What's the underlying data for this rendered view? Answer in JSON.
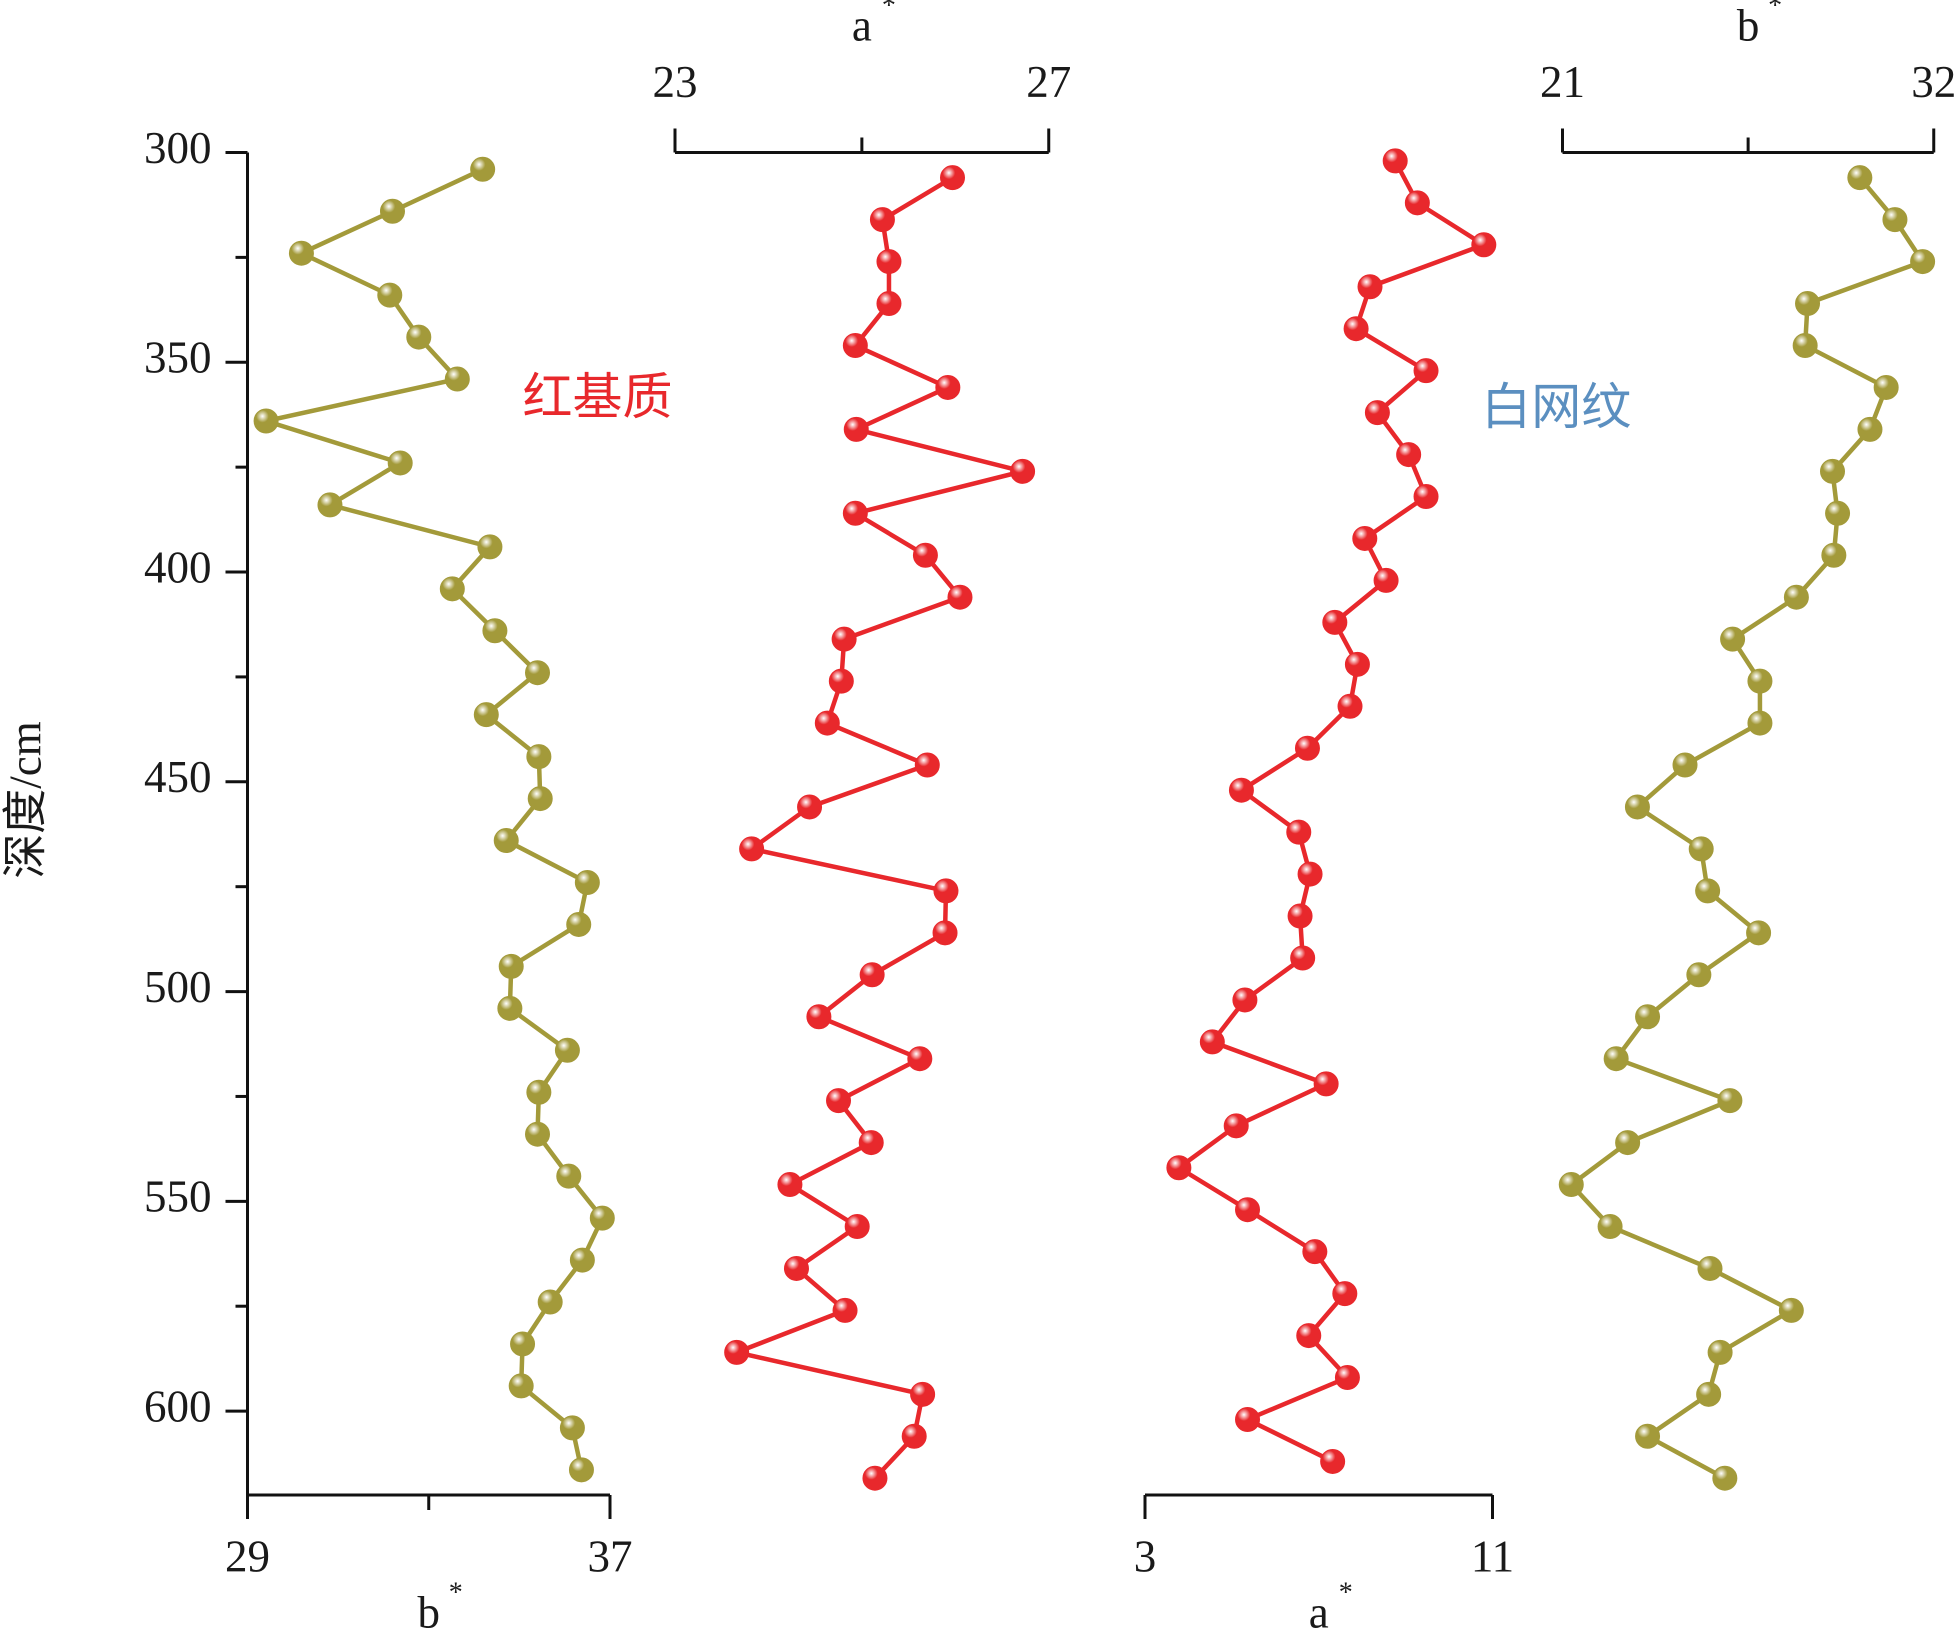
{
  "chart_data": [
    {
      "type": "line",
      "color": "#a39a3a",
      "xlabel": "b",
      "xlabel_sup": "*",
      "xaxis": "bottom",
      "ylabel": "深度/cm",
      "ylim": [
        300,
        620
      ],
      "yticks": [
        300,
        350,
        400,
        450,
        500,
        550,
        600
      ],
      "yminorticks": [
        325,
        375,
        425,
        475,
        525,
        575
      ],
      "xlim": [
        29,
        37
      ],
      "xticks": [
        29,
        37
      ],
      "xminorticks": [
        33
      ],
      "x": [
        34.19,
        32.2,
        30.19,
        32.14,
        32.78,
        33.63,
        29.41,
        32.37,
        30.82,
        34.35,
        33.52,
        34.46,
        35.4,
        34.27,
        35.43,
        35.46,
        34.71,
        36.5,
        36.31,
        34.82,
        34.79,
        36.06,
        35.43,
        35.4,
        36.09,
        36.83,
        36.39,
        35.68,
        35.07,
        35.04,
        36.17,
        36.37
      ],
      "y": [
        304,
        314,
        324,
        334,
        344,
        354,
        364,
        374,
        384,
        394,
        404,
        414,
        424,
        434,
        444,
        454,
        464,
        474,
        484,
        494,
        504,
        514,
        524,
        534,
        544,
        554,
        564,
        574,
        584,
        594,
        604,
        614
      ]
    },
    {
      "type": "line",
      "color": "#e8282c",
      "xlabel": "a",
      "xlabel_sup": "*",
      "xaxis": "top",
      "ylim": [
        300,
        620
      ],
      "xlim": [
        23,
        27
      ],
      "xticks": [
        23,
        27
      ],
      "xminorticks": [
        25
      ],
      "annotation": "红基质",
      "annotation_color": "#e8282c",
      "x": [
        25.97,
        25.22,
        25.29,
        25.29,
        24.93,
        25.92,
        24.94,
        26.72,
        24.93,
        25.68,
        26.05,
        24.81,
        24.78,
        24.63,
        25.7,
        24.44,
        23.82,
        25.9,
        25.89,
        25.11,
        24.54,
        25.62,
        24.75,
        25.1,
        24.23,
        24.95,
        24.3,
        24.82,
        23.66,
        25.65,
        25.56,
        25.14
      ],
      "y": [
        306,
        316,
        326,
        336,
        346,
        356,
        366,
        376,
        386,
        396,
        406,
        416,
        426,
        436,
        446,
        456,
        466,
        476,
        486,
        496,
        506,
        516,
        526,
        536,
        546,
        556,
        566,
        576,
        586,
        596,
        606,
        616
      ]
    },
    {
      "type": "line",
      "color": "#e8282c",
      "xlabel": "a",
      "xlabel_sup": "*",
      "xaxis": "bottom",
      "ylim": [
        300,
        620
      ],
      "xlim": [
        3,
        11
      ],
      "xticks": [
        3,
        11
      ],
      "annotation": "白网纹",
      "annotation_color": "#5b8fc0",
      "x": [
        8.76,
        9.27,
        10.8,
        8.18,
        7.86,
        9.47,
        8.35,
        9.07,
        9.47,
        8.06,
        8.55,
        7.37,
        7.89,
        7.72,
        6.74,
        5.22,
        6.54,
        6.8,
        6.57,
        6.63,
        5.3,
        4.55,
        7.17,
        5.1,
        3.78,
        5.36,
        6.91,
        7.6,
        6.77,
        7.66,
        5.36,
        7.32
      ],
      "y": [
        302,
        312,
        322,
        332,
        342,
        352,
        362,
        372,
        382,
        392,
        402,
        412,
        422,
        432,
        442,
        452,
        462,
        472,
        482,
        492,
        502,
        512,
        522,
        532,
        542,
        552,
        562,
        572,
        582,
        592,
        602,
        612
      ]
    },
    {
      "type": "line",
      "color": "#a39a3a",
      "xlabel": "b",
      "xlabel_sup": "*",
      "xaxis": "top",
      "ylim": [
        300,
        620
      ],
      "xlim": [
        21,
        32
      ],
      "xticks": [
        21,
        32
      ],
      "xminorticks": [
        26.5
      ],
      "x": [
        29.81,
        30.85,
        31.67,
        28.26,
        28.19,
        30.59,
        30.11,
        29.0,
        29.15,
        29.04,
        27.93,
        26.04,
        26.85,
        26.85,
        24.63,
        23.22,
        25.11,
        25.3,
        26.81,
        25.04,
        23.52,
        22.59,
        25.96,
        22.93,
        21.26,
        22.41,
        25.37,
        27.78,
        25.67,
        25.33,
        23.52,
        25.81
      ],
      "y": [
        306,
        316,
        326,
        336,
        346,
        356,
        366,
        376,
        386,
        396,
        406,
        416,
        426,
        436,
        446,
        456,
        466,
        476,
        486,
        496,
        506,
        516,
        526,
        536,
        546,
        556,
        566,
        576,
        586,
        596,
        606,
        616
      ]
    }
  ]
}
